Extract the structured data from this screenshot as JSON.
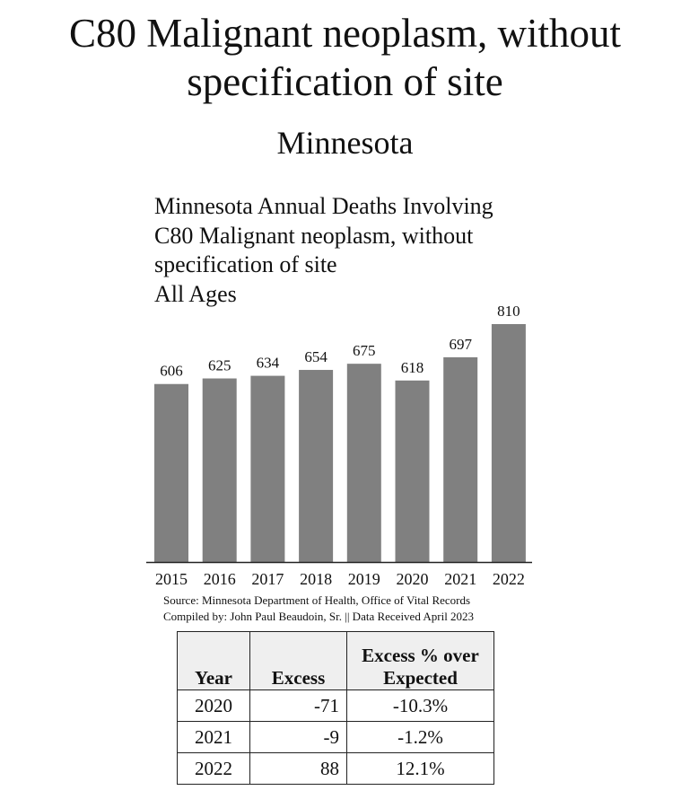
{
  "header": {
    "title": "C80 Malignant neoplasm, without specification of site",
    "subtitle": "Minnesota"
  },
  "chart_data": {
    "type": "bar",
    "title_lines": [
      "Minnesota Annual Deaths Involving",
      "C80 Malignant neoplasm, without",
      "specification of site",
      "All Ages"
    ],
    "categories": [
      "2015",
      "2016",
      "2017",
      "2018",
      "2019",
      "2020",
      "2021",
      "2022"
    ],
    "values": [
      606,
      625,
      634,
      654,
      675,
      618,
      697,
      810
    ],
    "bar_color": "#808080",
    "xlabel": "",
    "ylabel": "",
    "ylim": [
      0,
      810
    ],
    "grid": false
  },
  "source": {
    "line1": "Source:  Minnesota Department of Health, Office of Vital Records",
    "line2": "Compiled by:  John Paul Beaudoin, Sr. || Data Received April 2023"
  },
  "table": {
    "headers": [
      "Year",
      "Excess",
      "Excess % over Expected"
    ],
    "rows": [
      [
        "2020",
        "-71",
        "-10.3%"
      ],
      [
        "2021",
        "-9",
        "-1.2%"
      ],
      [
        "2022",
        "88",
        "12.1%"
      ]
    ]
  }
}
